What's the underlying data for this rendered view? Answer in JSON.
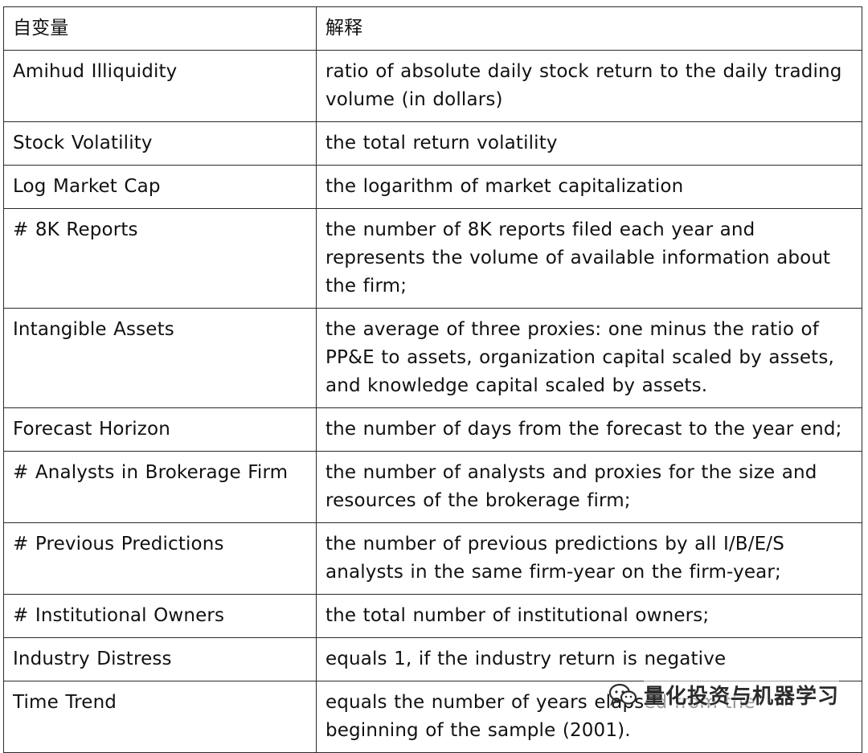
{
  "table": {
    "headers": [
      "自变量",
      "解释"
    ],
    "rows": [
      {
        "variable": "Amihud Illiquidity",
        "explanation": "ratio of absolute daily stock return to the daily trading volume (in dollars)"
      },
      {
        "variable": "Stock Volatility",
        "explanation": "the total return volatility"
      },
      {
        "variable": "Log Market Cap",
        "explanation": "the logarithm of market capitalization"
      },
      {
        "variable": "# 8K Reports",
        "explanation": "the number of 8K reports filed each year and represents the volume of available information about the firm;"
      },
      {
        "variable": "Intangible Assets",
        "explanation": "the average of three proxies: one minus the ratio of PP&E to assets, organization capital scaled by assets, and knowledge capital scaled by assets."
      },
      {
        "variable": "Forecast Horizon",
        "explanation": "the number of days from the forecast to the year end;"
      },
      {
        "variable": "# Analysts in Brokerage Firm",
        "explanation": "the number of analysts and proxies for the size and resources of the brokerage firm;"
      },
      {
        "variable": "# Previous Predictions",
        "explanation": "the number of previous predictions by all I/B/E/S analysts in the same firm-year on the firm-year;"
      },
      {
        "variable": "# Institutional Owners",
        "explanation": "the total number of institutional owners;"
      },
      {
        "variable": "Industry Distress",
        "explanation": "equals 1, if the industry return is negative"
      },
      {
        "variable": "Time Trend",
        "explanation": "equals the number of years elapsed from the beginning of the sample (2001)."
      }
    ]
  },
  "watermark": {
    "text": "量化投资与机器学习",
    "icon": "wechat-icon"
  }
}
